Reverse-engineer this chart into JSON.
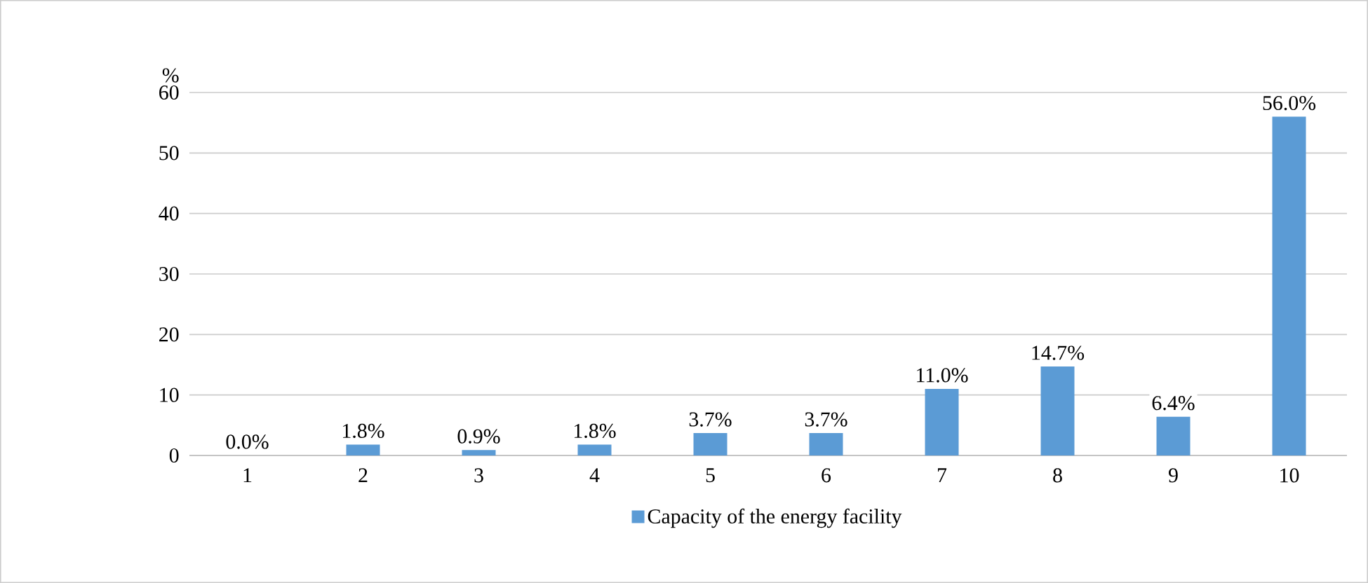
{
  "chart_data": {
    "type": "bar",
    "ylabel": "%",
    "categories": [
      "1",
      "2",
      "3",
      "4",
      "5",
      "6",
      "7",
      "8",
      "9",
      "10"
    ],
    "series": [
      {
        "name": "Capacity of the energy facility",
        "color": "#5b9bd5",
        "values": [
          0.0,
          1.8,
          0.9,
          1.8,
          3.7,
          3.7,
          11.0,
          14.7,
          6.4,
          56.0
        ],
        "value_labels": [
          "0.0%",
          "1.8%",
          "0.9%",
          "1.8%",
          "3.7%",
          "3.7%",
          "11.0%",
          "14.7%",
          "6.4%",
          "56.0%"
        ]
      }
    ],
    "ylim": [
      0,
      60
    ],
    "yticks": [
      0,
      10,
      20,
      30,
      40,
      50,
      60
    ],
    "grid": "y",
    "legend": "bottom"
  }
}
